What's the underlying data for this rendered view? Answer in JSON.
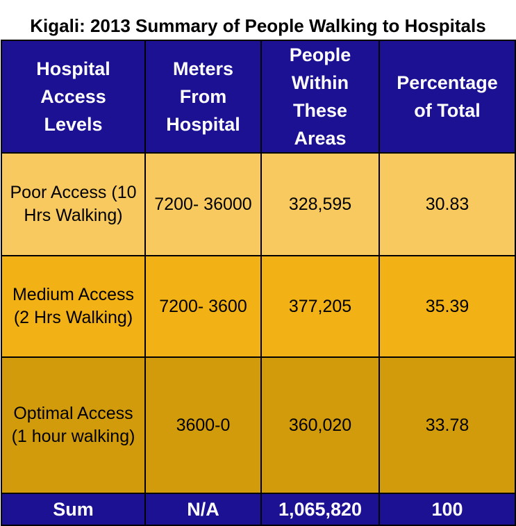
{
  "title": "Kigali: 2013 Summary of People Walking to Hospitals",
  "table": {
    "headers": [
      "Hospital Access Levels",
      "Meters From Hospital",
      "People Within These Areas",
      "Percentage of Total"
    ],
    "rows": [
      [
        "Poor Access (10 Hrs Walking)",
        "7200- 36000",
        "328,595",
        "30.83"
      ],
      [
        "Medium Access (2 Hrs Walking)",
        "7200- 3600",
        "377,205",
        "35.39"
      ],
      [
        "Optimal Access (1 hour walking)",
        "3600-0",
        "360,020",
        "33.78"
      ]
    ],
    "footer": [
      "Sum",
      "N/A",
      "1,065,820",
      "100"
    ]
  }
}
